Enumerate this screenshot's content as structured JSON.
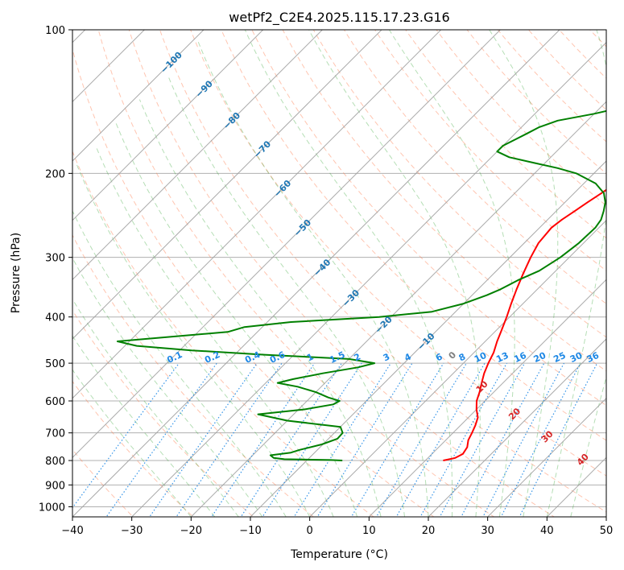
{
  "chart_data": {
    "type": "line",
    "subtype": "skew-t log-p",
    "title": "wetPf2_C2E4.2025.115.17.23.G16",
    "xlabel": "Temperature (°C)",
    "ylabel": "Pressure (hPa)",
    "xlim": [
      -40,
      50
    ],
    "ylim": [
      1050,
      100
    ],
    "y_scale": "log",
    "grid": true,
    "x_ticks": [
      -40,
      -30,
      -20,
      -10,
      0,
      10,
      20,
      30,
      40,
      50
    ],
    "x_tick_labels": [
      "−40",
      "−30",
      "−20",
      "−10",
      "0",
      "10",
      "20",
      "30",
      "40",
      "50"
    ],
    "y_ticks": [
      100,
      200,
      300,
      400,
      500,
      600,
      700,
      800,
      900,
      1000
    ],
    "y_tick_labels": [
      "100",
      "200",
      "300",
      "400",
      "500",
      "600",
      "700",
      "800",
      "900",
      "1000"
    ],
    "series": [
      {
        "name": "",
        "color": "#ff0000",
        "points": [
          [
            800,
            13
          ],
          [
            790,
            14.6
          ],
          [
            775,
            15.2
          ],
          [
            750,
            14.8
          ],
          [
            725,
            13.8
          ],
          [
            700,
            13.2
          ],
          [
            675,
            12.5
          ],
          [
            650,
            11.6
          ],
          [
            625,
            10.0
          ],
          [
            600,
            8.6
          ],
          [
            575,
            7.6
          ],
          [
            550,
            6.4
          ],
          [
            525,
            5.2
          ],
          [
            500,
            4.2
          ],
          [
            475,
            3.3
          ],
          [
            450,
            2.0
          ],
          [
            425,
            0.8
          ],
          [
            400,
            -0.5
          ],
          [
            375,
            -2.0
          ],
          [
            350,
            -3.5
          ],
          [
            325,
            -5.0
          ],
          [
            300,
            -6.5
          ],
          [
            280,
            -7.6
          ],
          [
            260,
            -8.0
          ],
          [
            250,
            -7.6
          ],
          [
            240,
            -6.9
          ],
          [
            230,
            -6.2
          ],
          [
            220,
            -5.4
          ],
          [
            210,
            -4.6
          ],
          [
            200,
            -4.0
          ],
          [
            190,
            -3.6
          ],
          [
            180,
            -3.2
          ],
          [
            170,
            -2.6
          ],
          [
            160,
            -1.8
          ],
          [
            150,
            -2.0
          ],
          [
            140,
            -2.6
          ],
          [
            130,
            -3.0
          ],
          [
            120,
            -3.6
          ],
          [
            110,
            -3.0
          ],
          [
            100,
            -1.6
          ]
        ]
      },
      {
        "name": "",
        "color": "#008000",
        "points": [
          [
            800,
            -4
          ],
          [
            798,
            -6
          ],
          [
            795,
            -14
          ],
          [
            790,
            -16
          ],
          [
            780,
            -17
          ],
          [
            770,
            -14
          ],
          [
            760,
            -13
          ],
          [
            740,
            -10.2
          ],
          [
            720,
            -8.5
          ],
          [
            700,
            -8.6
          ],
          [
            680,
            -10
          ],
          [
            660,
            -20
          ],
          [
            640,
            -26
          ],
          [
            625,
            -19
          ],
          [
            610,
            -15
          ],
          [
            600,
            -14.5
          ],
          [
            590,
            -17
          ],
          [
            575,
            -20
          ],
          [
            560,
            -24
          ],
          [
            550,
            -28
          ],
          [
            540,
            -26
          ],
          [
            525,
            -22
          ],
          [
            510,
            -17
          ],
          [
            500,
            -15
          ],
          [
            490,
            -20
          ],
          [
            480,
            -35
          ],
          [
            470,
            -48
          ],
          [
            460,
            -58
          ],
          [
            450,
            -62
          ],
          [
            430,
            -45
          ],
          [
            420,
            -43
          ],
          [
            410,
            -36
          ],
          [
            400,
            -22
          ],
          [
            390,
            -14
          ],
          [
            375,
            -10
          ],
          [
            360,
            -7.5
          ],
          [
            350,
            -6.2
          ],
          [
            335,
            -4.8
          ],
          [
            320,
            -2.8
          ],
          [
            300,
            -1.5
          ],
          [
            280,
            -0.8
          ],
          [
            260,
            -0.6
          ],
          [
            250,
            -1.0
          ],
          [
            240,
            -2.0
          ],
          [
            230,
            -3.2
          ],
          [
            220,
            -5.0
          ],
          [
            210,
            -8.0
          ],
          [
            200,
            -13.0
          ],
          [
            195,
            -17
          ],
          [
            190,
            -22
          ],
          [
            185,
            -27
          ],
          [
            180,
            -30
          ],
          [
            175,
            -30
          ],
          [
            170,
            -29
          ],
          [
            165,
            -28
          ],
          [
            160,
            -27
          ],
          [
            155,
            -25
          ],
          [
            150,
            -20
          ],
          [
            145,
            -16
          ],
          [
            140,
            -12
          ],
          [
            135,
            -9
          ],
          [
            130,
            -7
          ],
          [
            125,
            -5.5
          ],
          [
            120,
            -4
          ],
          [
            115,
            -3
          ],
          [
            110,
            -2
          ],
          [
            105,
            -1
          ],
          [
            100,
            0
          ]
        ]
      }
    ],
    "reference_lines": {
      "isotherm_color": "#a0a0a0",
      "dry_adiabat_color": "#ff7f50",
      "moist_adiabat_color": "#2ca02c",
      "mixing_ratio_color": "#1e88e5",
      "isotherm_labels": [
        "−100",
        "−90",
        "−80",
        "−70",
        "−60",
        "−50",
        "−40",
        "−30",
        "−20",
        "−10"
      ],
      "isotherm_label_color": "#1f77b4",
      "mixing_ratio_labels": [
        "0.1",
        "0.2",
        "0.4",
        "0.6",
        "1",
        "1.5",
        "2",
        "3",
        "4",
        "6",
        "8",
        "10",
        "13",
        "16",
        "20",
        "25",
        "30",
        "36"
      ],
      "mixing_ratio_label_color": "#1e88e5",
      "moist_adiabat_labels": [
        "0",
        "10",
        "20",
        "30",
        "40"
      ],
      "moist_adiabat_label_colors": [
        "#808080",
        "#d62728",
        "#d62728",
        "#d62728",
        "#d62728"
      ]
    }
  }
}
